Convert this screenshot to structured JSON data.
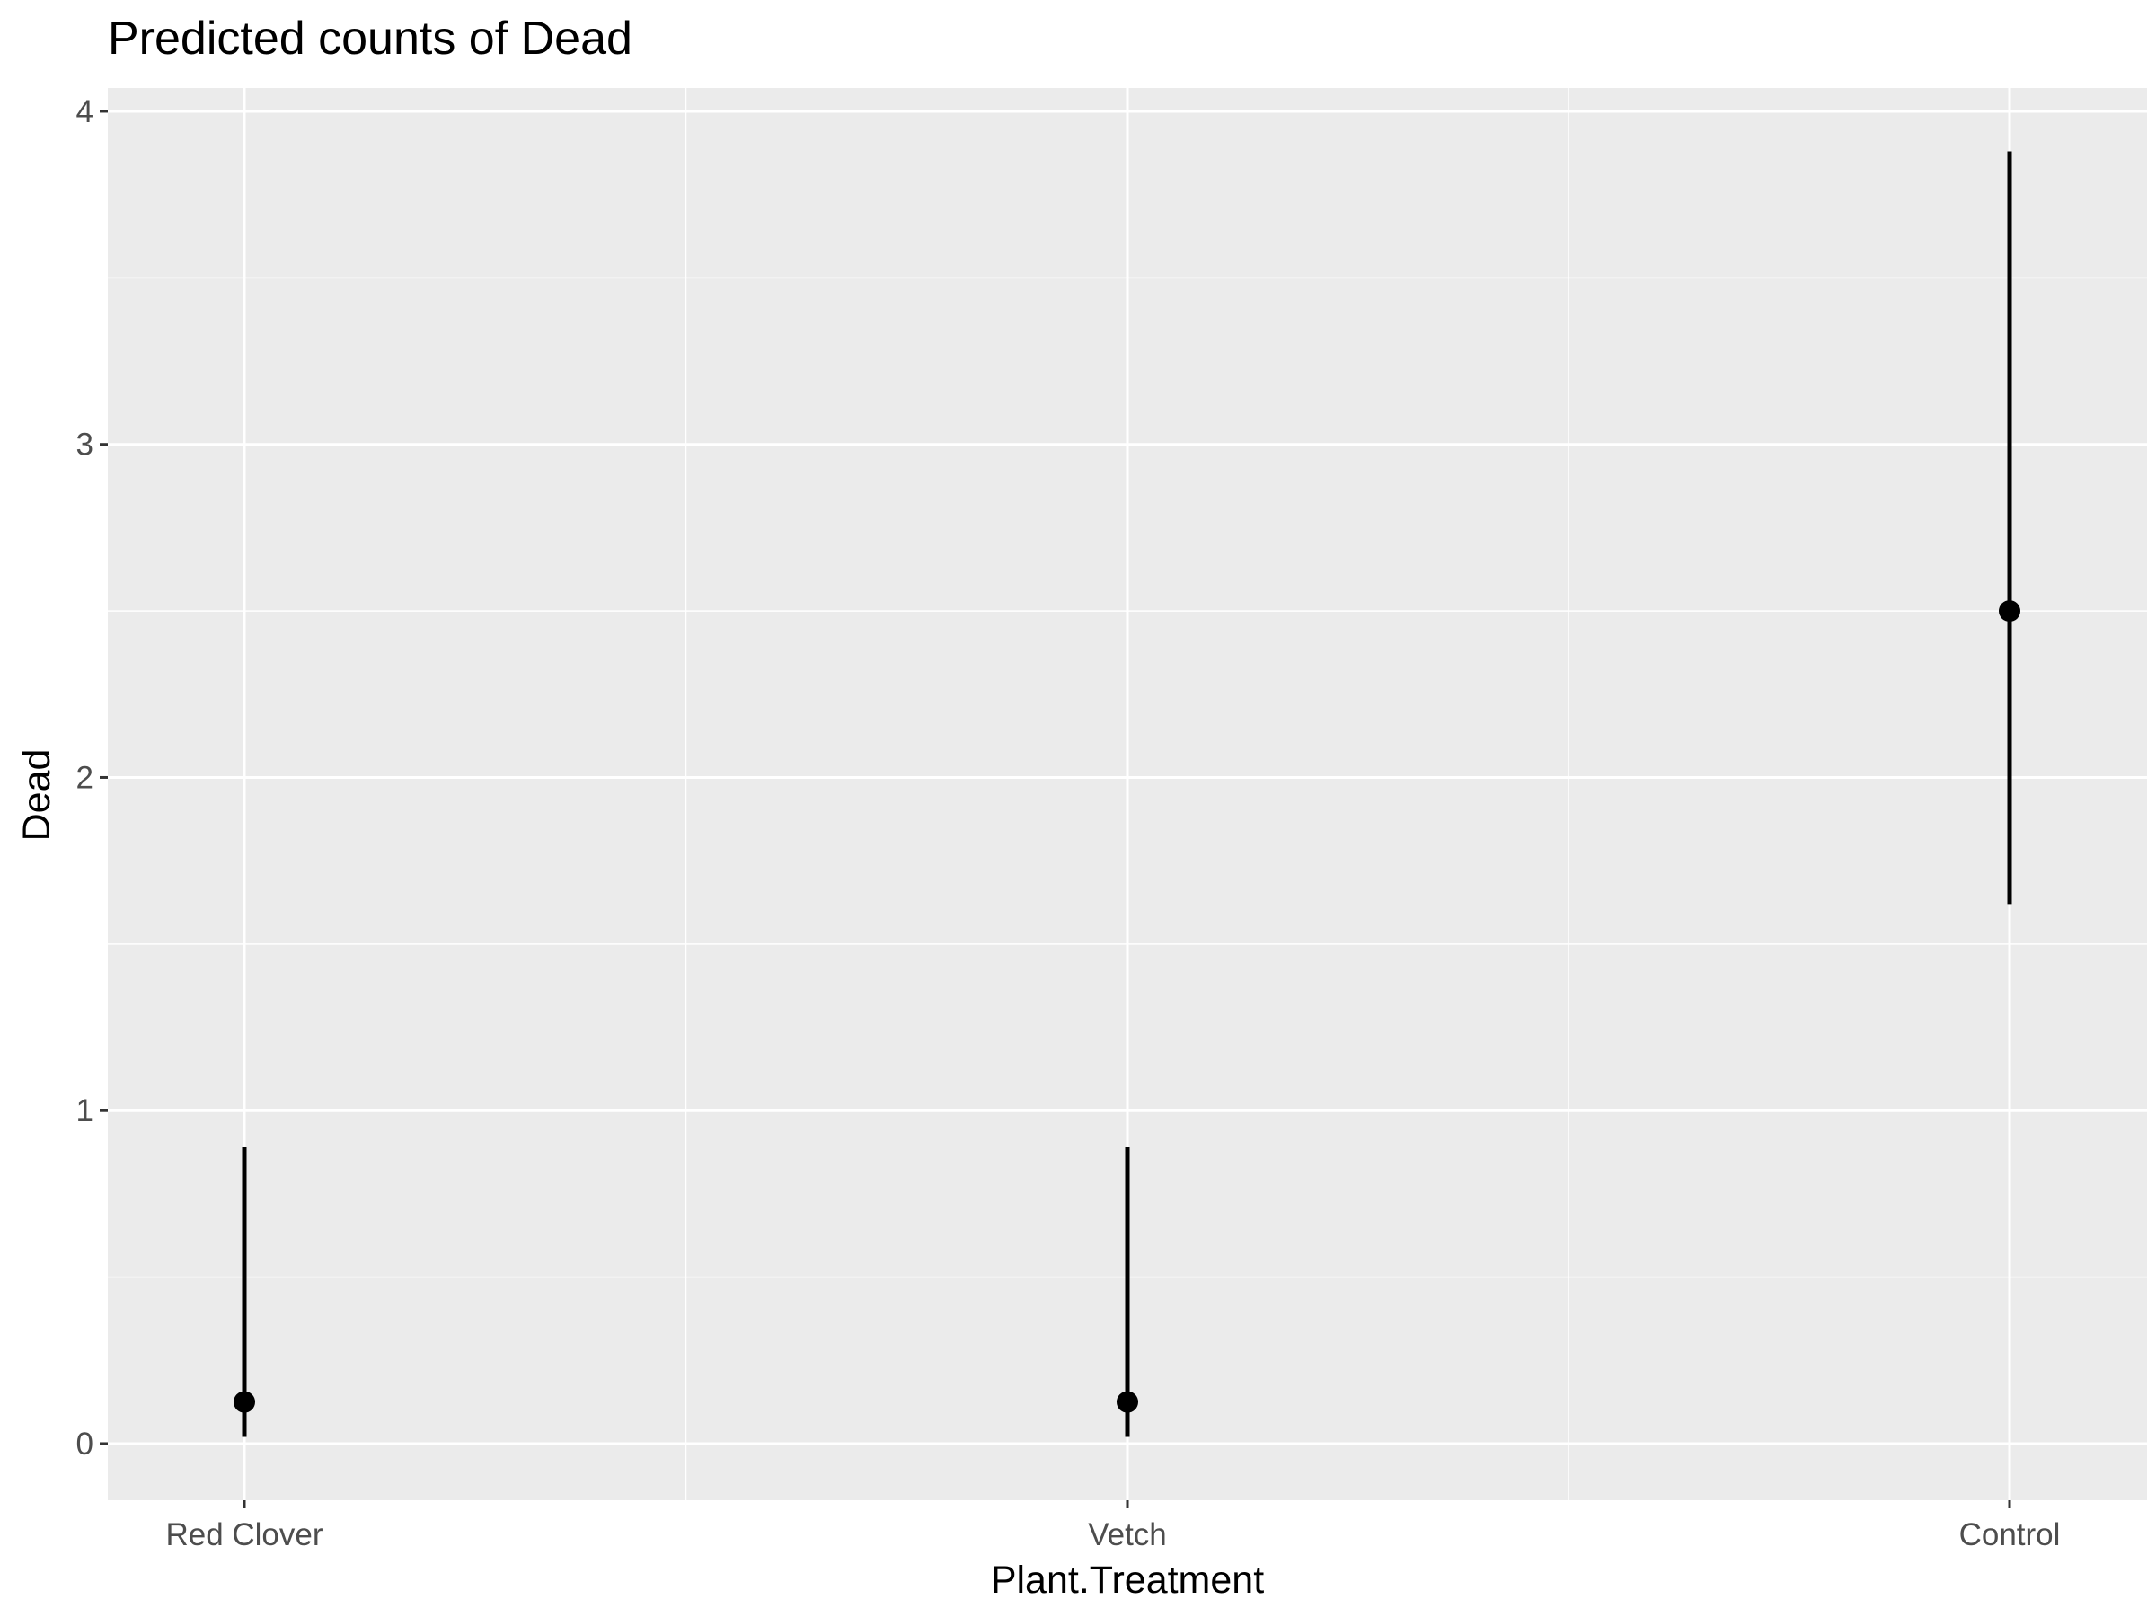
{
  "chart_data": {
    "type": "scatter",
    "title": "Predicted counts of Dead",
    "xlabel": "Plant.Treatment",
    "ylabel": "Dead",
    "categories": [
      "Red Clover",
      "Vetch",
      "Control"
    ],
    "series": [
      {
        "values": [
          0.125,
          0.125,
          2.5
        ],
        "conf_low": [
          0.02,
          0.02,
          1.62
        ],
        "conf_high": [
          0.89,
          0.89,
          3.88
        ]
      }
    ],
    "ylim": [
      -0.17,
      4.07
    ],
    "yticks": [
      0,
      1,
      2,
      3,
      4
    ],
    "ytick_labels": [
      "0",
      "1",
      "2",
      "3",
      "4"
    ],
    "grid": true,
    "legend": "none",
    "colors": {
      "panel": "#EBEBEB",
      "grid": "#FFFFFF",
      "marks": "#000000",
      "tick_text": "#4D4D4D",
      "tick_mark": "#333333"
    }
  }
}
